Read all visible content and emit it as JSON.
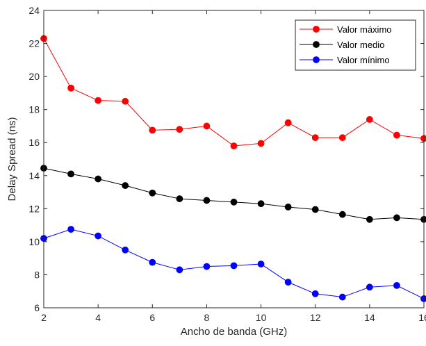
{
  "chart_data": {
    "type": "line",
    "title": "",
    "xlabel": "Ancho de banda (GHz)",
    "ylabel": "Delay Spread (ns)",
    "xlim": [
      2,
      16
    ],
    "ylim": [
      6,
      24
    ],
    "xticks": [
      2,
      4,
      6,
      8,
      10,
      12,
      14,
      16
    ],
    "yticks": [
      6,
      8,
      10,
      12,
      14,
      16,
      18,
      20,
      22,
      24
    ],
    "grid": false,
    "legend_position": "top-right",
    "x": [
      2,
      3,
      4,
      5,
      6,
      7,
      8,
      9,
      10,
      11,
      12,
      13,
      14,
      15,
      16
    ],
    "series": [
      {
        "name": "Valor máximo",
        "color": "#ff0000",
        "values": [
          22.3,
          19.3,
          18.55,
          18.5,
          16.75,
          16.8,
          17.0,
          15.8,
          15.95,
          17.2,
          16.3,
          16.3,
          17.4,
          16.45,
          16.25
        ]
      },
      {
        "name": "Valor medio",
        "color": "#000000",
        "values": [
          14.45,
          14.1,
          13.8,
          13.4,
          12.95,
          12.6,
          12.5,
          12.4,
          12.3,
          12.1,
          11.95,
          11.65,
          11.35,
          11.45,
          11.35
        ]
      },
      {
        "name": "Valor mínimo",
        "color": "#0000ff",
        "values": [
          10.2,
          10.75,
          10.35,
          9.5,
          8.75,
          8.3,
          8.5,
          8.55,
          8.65,
          7.55,
          6.85,
          6.65,
          7.25,
          7.35,
          6.55
        ]
      }
    ]
  }
}
